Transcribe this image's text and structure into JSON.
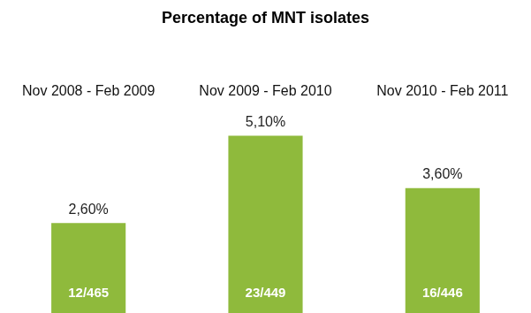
{
  "chart_data": {
    "type": "bar",
    "title": "Percentage of MNT isolates",
    "categories": [
      "Nov 2008 - Feb 2009",
      "Nov 2009 - Feb 2010",
      "Nov 2010 - Feb 2011"
    ],
    "values": [
      2.6,
      5.1,
      3.6
    ],
    "value_labels": [
      "2,60%",
      "5,10%",
      "3,60%"
    ],
    "annotations": [
      "12/465",
      "23/449",
      "16/446"
    ],
    "color": "#8fba3c",
    "ylim": [
      0,
      6
    ],
    "data_labels": true,
    "grid": false,
    "tick_labels": "x"
  }
}
